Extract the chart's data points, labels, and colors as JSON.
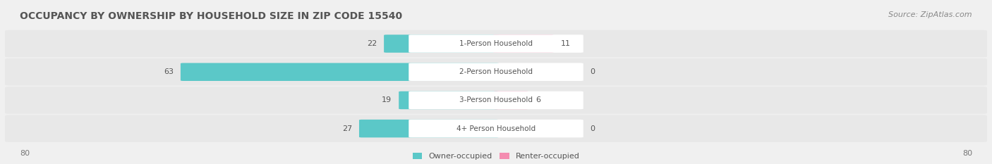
{
  "title": "OCCUPANCY BY OWNERSHIP BY HOUSEHOLD SIZE IN ZIP CODE 15540",
  "source": "Source: ZipAtlas.com",
  "categories": [
    "1-Person Household",
    "2-Person Household",
    "3-Person Household",
    "4+ Person Household"
  ],
  "owner_values": [
    22,
    63,
    19,
    27
  ],
  "renter_values": [
    11,
    0,
    6,
    0
  ],
  "owner_color": "#5bc8c8",
  "renter_color": "#f48cb0",
  "axis_max": 80,
  "bg_color": "#f0f0f0",
  "row_bg_color": "#e8e8e8",
  "label_bg_color": "#ffffff",
  "legend_owner": "Owner-occupied",
  "legend_renter": "Renter-occupied",
  "title_fontsize": 10,
  "source_fontsize": 8,
  "bar_label_fontsize": 8,
  "category_label_fontsize": 7.5,
  "axis_label_fontsize": 8,
  "legend_fontsize": 8
}
